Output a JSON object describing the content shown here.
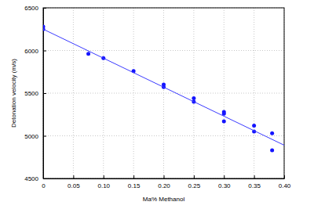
{
  "chart_data": {
    "type": "scatter",
    "x_label": "Ma% Methanol",
    "y_label": "Detonation velocity (m/s)",
    "xlim": [
      0,
      0.4
    ],
    "ylim": [
      4500,
      6500
    ],
    "xticks": [
      0,
      0.05,
      {
        "value": 0.1,
        "label": "0.10"
      },
      0.15,
      {
        "value": 0.2,
        "label": "0.20"
      },
      0.25,
      {
        "value": 0.3,
        "label": "0.30"
      },
      0.35,
      {
        "value": 0.4,
        "label": "0.40"
      }
    ],
    "yticks": [
      4500,
      5000,
      5500,
      6000,
      6500
    ],
    "grid": true,
    "series": [
      {
        "type": "scatter",
        "color": "#1414ff",
        "marker": "circle",
        "x": [
          0,
          0,
          0.075,
          0.1,
          0.15,
          0.2,
          0.2,
          0.25,
          0.25,
          0.3,
          0.3,
          0.3,
          0.35,
          0.35,
          0.38,
          0.38
        ],
        "values": [
          6280,
          6250,
          5960,
          5910,
          5760,
          5600,
          5570,
          5440,
          5400,
          5280,
          5260,
          5170,
          5120,
          5050,
          5030,
          4830
        ]
      },
      {
        "type": "line",
        "color": "#3a3aff",
        "line_style": "solid",
        "x": [
          0,
          0.4
        ],
        "values": [
          6250,
          4890
        ]
      }
    ]
  }
}
